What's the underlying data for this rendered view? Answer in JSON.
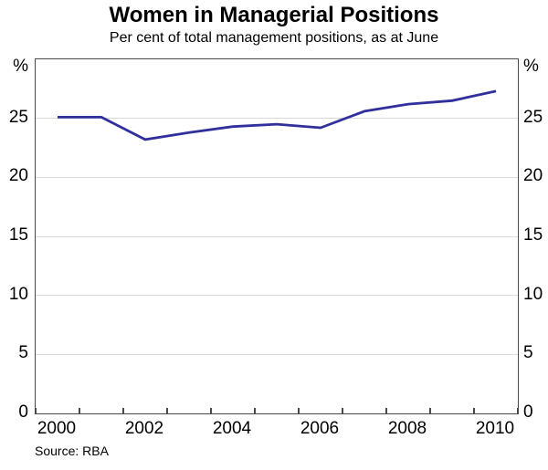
{
  "chart": {
    "title": "Women in Managerial Positions",
    "subtitle": "Per cent of total management positions, as at June",
    "unit_label": "%",
    "source": "Source: RBA"
  },
  "chart_data": {
    "type": "line",
    "title": "Women in Managerial Positions",
    "subtitle": "Per cent of total management positions, as at June",
    "x": [
      2000,
      2001,
      2002,
      2003,
      2004,
      2005,
      2006,
      2007,
      2008,
      2009,
      2010
    ],
    "series": [
      {
        "name": "Women in managerial positions (per cent of total management positions, as at June)",
        "values": [
          25.1,
          25.1,
          23.2,
          23.8,
          24.3,
          24.5,
          24.2,
          25.6,
          26.2,
          26.5,
          27.3
        ]
      }
    ],
    "xlabel": "",
    "ylabel": "%",
    "ylim": [
      0,
      30
    ],
    "ytick_interval": 5,
    "ytick_labels": [
      "0",
      "5",
      "10",
      "15",
      "20",
      "25"
    ],
    "xtick_labels": [
      "2000",
      "2002",
      "2004",
      "2006",
      "2008",
      "2010"
    ],
    "x_axis_boundaries": [
      2000,
      2011
    ],
    "grid": "horizontal",
    "legend_position": "none",
    "dual_axis_labels": true,
    "line_color": "#30309c",
    "gridline_color": "#d9d9d9",
    "axis_color": "#4a4a4a",
    "source": "Source: RBA"
  }
}
